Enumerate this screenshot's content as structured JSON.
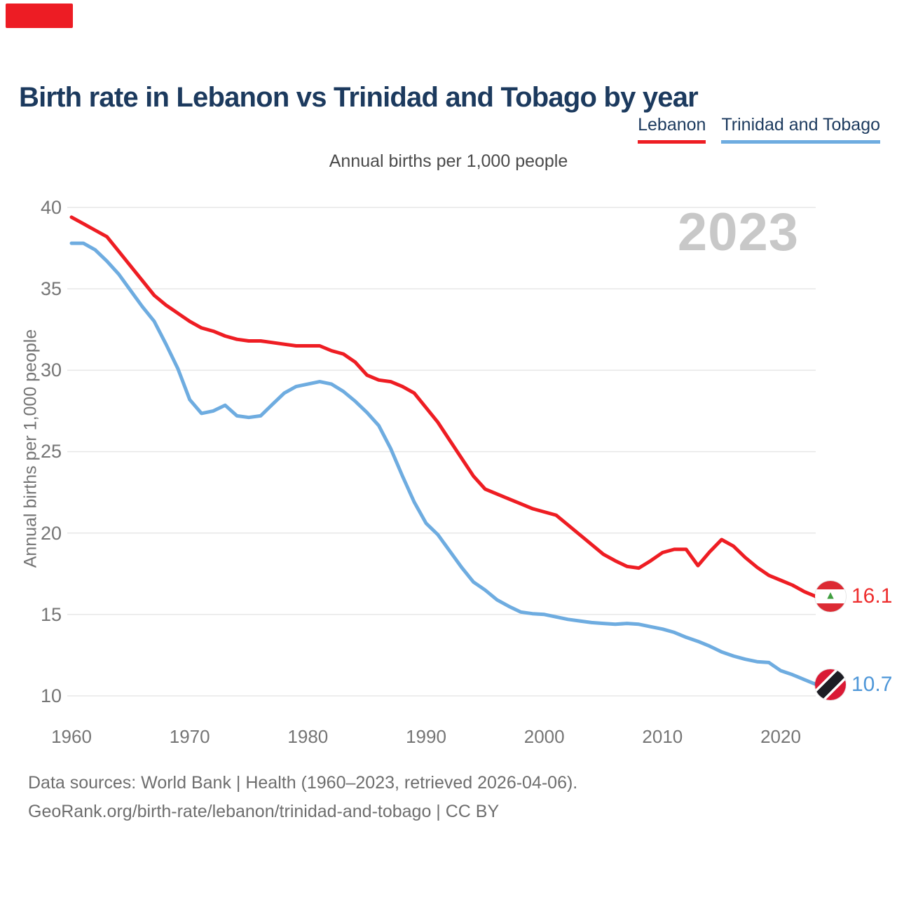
{
  "page": {
    "title": "Birth rate in Lebanon vs Trinidad and Tobago by year",
    "subtitle": "Annual births per 1,000 people",
    "watermark_year": "2023",
    "footer_line1": "Data sources: World Bank | Health (1960–2023, retrieved 2026-04-06).",
    "footer_line2": "GeoRank.org/birth-rate/lebanon/trinidad-and-tobago | CC BY"
  },
  "colors": {
    "lebanon_line": "#ee1d23",
    "trinidad_line": "#6eace0",
    "lebanon_value_text": "#ee2d2d",
    "trinidad_value_text": "#4f97d8",
    "title_text": "#1c3a5e",
    "axis_text": "#757575",
    "gridline": "#e7e7e7",
    "watermark": "#c8c8c8",
    "corner_badge": "#ed1c24"
  },
  "legend": {
    "items": [
      {
        "label": "Lebanon",
        "color": "#ee1d23"
      },
      {
        "label": "Trinidad and Tobago",
        "color": "#6eace0"
      }
    ]
  },
  "end_labels": [
    {
      "series": "Lebanon",
      "value": "16.1",
      "flag": "lebanon",
      "color": "#ee2d2d"
    },
    {
      "series": "Trinidad and Tobago",
      "value": "10.7",
      "flag": "trinidad",
      "color": "#4f97d8"
    }
  ],
  "axes": {
    "y_label": "Annual births per 1,000 people",
    "y_ticks": [
      40,
      35,
      30,
      25,
      20,
      15,
      10
    ],
    "x_ticks": [
      1960,
      1970,
      1980,
      1990,
      2000,
      2010,
      2020
    ]
  },
  "chart_data": {
    "type": "line",
    "title": "Birth rate in Lebanon vs Trinidad and Tobago by year",
    "ylabel": "Annual births per 1,000 people",
    "xlabel": "",
    "xlim": [
      1960,
      2023
    ],
    "ylim": [
      10,
      40
    ],
    "grid": "horizontal",
    "legend_position": "top-right",
    "annotation": "2023",
    "x": [
      1960,
      1961,
      1962,
      1963,
      1964,
      1965,
      1966,
      1967,
      1968,
      1969,
      1970,
      1971,
      1972,
      1973,
      1974,
      1975,
      1976,
      1977,
      1978,
      1979,
      1980,
      1981,
      1982,
      1983,
      1984,
      1985,
      1986,
      1987,
      1988,
      1989,
      1990,
      1991,
      1992,
      1993,
      1994,
      1995,
      1996,
      1997,
      1998,
      1999,
      2000,
      2001,
      2002,
      2003,
      2004,
      2005,
      2006,
      2007,
      2008,
      2009,
      2010,
      2011,
      2012,
      2013,
      2014,
      2015,
      2016,
      2017,
      2018,
      2019,
      2020,
      2021,
      2022,
      2023
    ],
    "series": [
      {
        "name": "Lebanon",
        "color": "#ee1d23",
        "last_value_label": "16.1",
        "values": [
          39.4,
          39.0,
          38.6,
          38.2,
          37.3,
          36.4,
          35.5,
          34.6,
          34.0,
          33.5,
          33.0,
          32.6,
          32.4,
          32.1,
          31.9,
          31.8,
          31.8,
          31.7,
          31.6,
          31.5,
          31.5,
          31.5,
          31.2,
          31.0,
          30.5,
          29.7,
          29.4,
          29.3,
          29.0,
          28.6,
          27.7,
          26.8,
          25.7,
          24.6,
          23.5,
          22.7,
          22.4,
          22.1,
          21.8,
          21.5,
          21.3,
          21.1,
          20.5,
          19.9,
          19.3,
          18.7,
          18.3,
          17.95,
          17.85,
          18.3,
          18.8,
          19.0,
          19.0,
          18.0,
          18.85,
          19.6,
          19.2,
          18.5,
          17.9,
          17.4,
          17.1,
          16.8,
          16.4,
          16.1
        ]
      },
      {
        "name": "Trinidad and Tobago",
        "color": "#6eace0",
        "last_value_label": "10.7",
        "values": [
          37.8,
          37.8,
          37.4,
          36.7,
          35.9,
          34.9,
          33.9,
          33.0,
          31.6,
          30.1,
          28.2,
          27.35,
          27.5,
          27.85,
          27.2,
          27.1,
          27.2,
          27.9,
          28.6,
          29.0,
          29.15,
          29.3,
          29.15,
          28.7,
          28.1,
          27.4,
          26.6,
          25.2,
          23.5,
          21.9,
          20.6,
          19.9,
          18.9,
          17.9,
          17.0,
          16.5,
          15.9,
          15.5,
          15.15,
          15.05,
          15.0,
          14.85,
          14.7,
          14.6,
          14.5,
          14.45,
          14.4,
          14.45,
          14.4,
          14.25,
          14.1,
          13.9,
          13.6,
          13.35,
          13.05,
          12.7,
          12.45,
          12.25,
          12.1,
          12.05,
          11.55,
          11.3,
          11.0,
          10.7
        ]
      }
    ]
  }
}
